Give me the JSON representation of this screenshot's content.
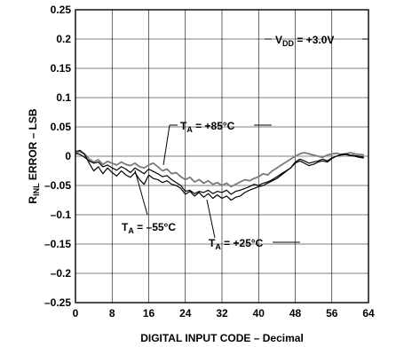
{
  "chart_data": {
    "type": "line",
    "xlabel": "DIGITAL INPUT CODE – Decimal",
    "ylabel": {
      "main": "R",
      "sub": "INL",
      "rest": " ERROR – LSB"
    },
    "xlim": [
      0,
      64
    ],
    "ylim": [
      -0.25,
      0.25
    ],
    "xticks": [
      "0",
      "8",
      "16",
      "24",
      "32",
      "40",
      "48",
      "56",
      "64"
    ],
    "yticks": [
      "0.25",
      "0.2",
      "0.15",
      "0.1",
      "0.05",
      "0",
      "–0.05",
      "–0.1",
      "–0.15",
      "–0.2",
      "–0.25"
    ],
    "grid": true,
    "annotations": {
      "vdd": {
        "main": "V",
        "sub": "DD",
        "rest": " = +3.0V"
      },
      "t85": {
        "main": "T",
        "sub": "A",
        "rest": " = +85°C"
      },
      "tm55": {
        "main": "T",
        "sub": "A",
        "rest": " = –55°C"
      },
      "t25": {
        "main": "T",
        "sub": "A",
        "rest": " = +25°C"
      }
    },
    "series": [
      {
        "id": "t85",
        "color": "#7a7a7a",
        "x": [
          0,
          1,
          2,
          3,
          4,
          5,
          6,
          7,
          8,
          9,
          10,
          11,
          12,
          13,
          14,
          15,
          16,
          17,
          18,
          19,
          20,
          21,
          22,
          23,
          24,
          25,
          26,
          27,
          28,
          29,
          30,
          31,
          32,
          33,
          34,
          35,
          36,
          37,
          38,
          39,
          40,
          41,
          42,
          43,
          44,
          45,
          46,
          47,
          48,
          49,
          50,
          51,
          52,
          53,
          54,
          55,
          56,
          57,
          58,
          59,
          60,
          61,
          62,
          63
        ],
        "values": [
          0.005,
          0.008,
          0.004,
          -0.005,
          -0.01,
          -0.006,
          -0.014,
          -0.009,
          -0.012,
          -0.015,
          -0.01,
          -0.014,
          -0.016,
          -0.012,
          -0.018,
          -0.02,
          -0.015,
          -0.012,
          -0.018,
          -0.025,
          -0.022,
          -0.03,
          -0.028,
          -0.035,
          -0.04,
          -0.036,
          -0.044,
          -0.04,
          -0.046,
          -0.042,
          -0.048,
          -0.045,
          -0.05,
          -0.046,
          -0.052,
          -0.048,
          -0.044,
          -0.04,
          -0.042,
          -0.038,
          -0.035,
          -0.03,
          -0.032,
          -0.025,
          -0.02,
          -0.015,
          -0.01,
          -0.005,
          0.0,
          0.004,
          0.006,
          0.004,
          0.002,
          0.0,
          -0.002,
          0.002,
          0.004,
          0.005,
          0.003,
          0.004,
          0.006,
          0.004,
          0.003,
          0.002
        ]
      },
      {
        "id": "t25",
        "color": "#000000",
        "x": [
          0,
          1,
          2,
          3,
          4,
          5,
          6,
          7,
          8,
          9,
          10,
          11,
          12,
          13,
          14,
          15,
          16,
          17,
          18,
          19,
          20,
          21,
          22,
          23,
          24,
          25,
          26,
          27,
          28,
          29,
          30,
          31,
          32,
          33,
          34,
          35,
          36,
          37,
          38,
          39,
          40,
          41,
          42,
          43,
          44,
          45,
          46,
          47,
          48,
          49,
          50,
          51,
          52,
          53,
          54,
          55,
          56,
          57,
          58,
          59,
          60,
          61,
          62,
          63
        ],
        "values": [
          0.005,
          0.003,
          -0.002,
          -0.008,
          -0.012,
          -0.01,
          -0.018,
          -0.015,
          -0.02,
          -0.024,
          -0.018,
          -0.022,
          -0.028,
          -0.02,
          -0.025,
          -0.03,
          -0.022,
          -0.026,
          -0.03,
          -0.035,
          -0.033,
          -0.04,
          -0.045,
          -0.05,
          -0.06,
          -0.058,
          -0.064,
          -0.06,
          -0.062,
          -0.058,
          -0.064,
          -0.06,
          -0.062,
          -0.058,
          -0.065,
          -0.06,
          -0.058,
          -0.055,
          -0.052,
          -0.048,
          -0.05,
          -0.046,
          -0.044,
          -0.04,
          -0.035,
          -0.03,
          -0.025,
          -0.02,
          -0.01,
          -0.005,
          -0.008,
          -0.012,
          -0.01,
          -0.008,
          -0.005,
          -0.008,
          -0.003,
          0.0,
          0.002,
          0.003,
          0.001,
          0.0,
          -0.002,
          -0.003
        ]
      },
      {
        "id": "tm55",
        "color": "#000000",
        "x": [
          0,
          1,
          2,
          3,
          4,
          5,
          6,
          7,
          8,
          9,
          10,
          11,
          12,
          13,
          14,
          15,
          16,
          17,
          18,
          19,
          20,
          21,
          22,
          23,
          24,
          25,
          26,
          27,
          28,
          29,
          30,
          31,
          32,
          33,
          34,
          35,
          36,
          37,
          38,
          39,
          40,
          41,
          42,
          43,
          44,
          45,
          46,
          47,
          48,
          49,
          50,
          51,
          52,
          53,
          54,
          55,
          56,
          57,
          58,
          59,
          60,
          61,
          62,
          63
        ],
        "values": [
          0.008,
          0.01,
          0.003,
          -0.012,
          -0.025,
          -0.018,
          -0.03,
          -0.02,
          -0.028,
          -0.034,
          -0.025,
          -0.032,
          -0.036,
          -0.028,
          -0.04,
          -0.048,
          -0.032,
          -0.038,
          -0.04,
          -0.045,
          -0.042,
          -0.048,
          -0.05,
          -0.055,
          -0.065,
          -0.06,
          -0.068,
          -0.062,
          -0.07,
          -0.064,
          -0.072,
          -0.066,
          -0.072,
          -0.068,
          -0.075,
          -0.07,
          -0.068,
          -0.062,
          -0.058,
          -0.055,
          -0.052,
          -0.05,
          -0.046,
          -0.042,
          -0.038,
          -0.032,
          -0.026,
          -0.02,
          -0.012,
          -0.008,
          -0.012,
          -0.016,
          -0.014,
          -0.01,
          -0.008,
          -0.01,
          -0.004,
          0.0,
          0.003,
          0.004,
          0.002,
          0.001,
          0.0,
          -0.002
        ]
      }
    ]
  }
}
